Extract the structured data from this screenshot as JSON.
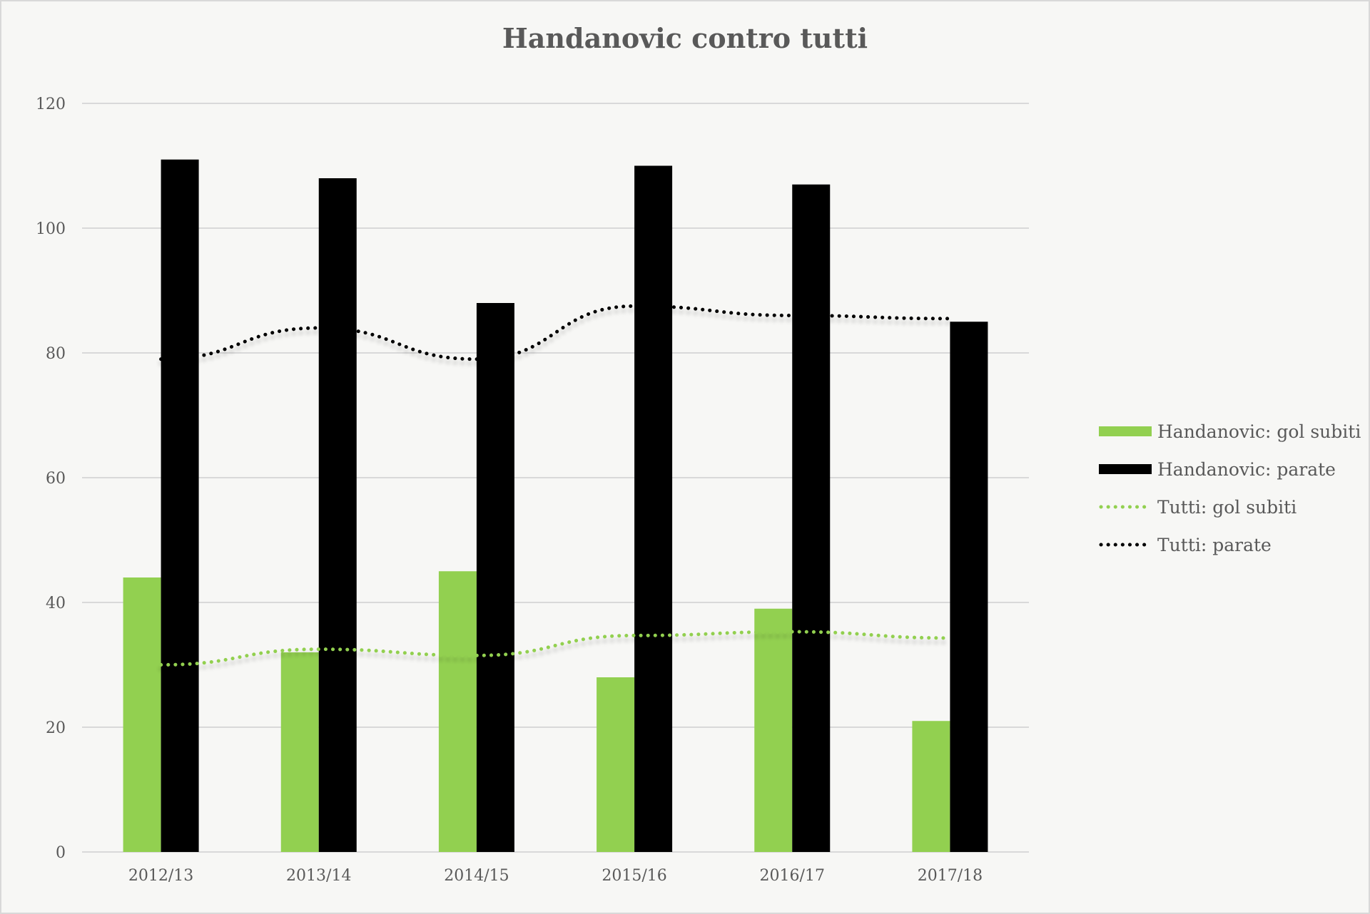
{
  "chart_data": {
    "type": "bar",
    "title": "Handanovic contro tutti",
    "categories": [
      "2012/13",
      "2013/14",
      "2014/15",
      "2015/16",
      "2016/17",
      "2017/18"
    ],
    "ylim": [
      0,
      120
    ],
    "yticks": [
      0,
      20,
      40,
      60,
      80,
      100,
      120
    ],
    "grid": true,
    "legend": "right",
    "series": [
      {
        "name": "Handanovic: gol subiti",
        "kind": "bar",
        "color": "#92d050",
        "values": [
          44,
          32,
          45,
          28,
          39,
          21
        ]
      },
      {
        "name": "Handanovic: parate",
        "kind": "bar",
        "color": "#000000",
        "values": [
          111,
          108,
          88,
          110,
          107,
          85
        ]
      },
      {
        "name": "Tutti: gol subiti",
        "kind": "dotted-line",
        "color": "#92d050",
        "values": [
          30,
          32.5,
          31.5,
          34.7,
          35.3,
          34.3
        ]
      },
      {
        "name": "Tutti: parate",
        "kind": "dotted-line",
        "color": "#000000",
        "values": [
          79,
          84,
          79,
          87.5,
          86,
          85.5
        ]
      }
    ]
  }
}
